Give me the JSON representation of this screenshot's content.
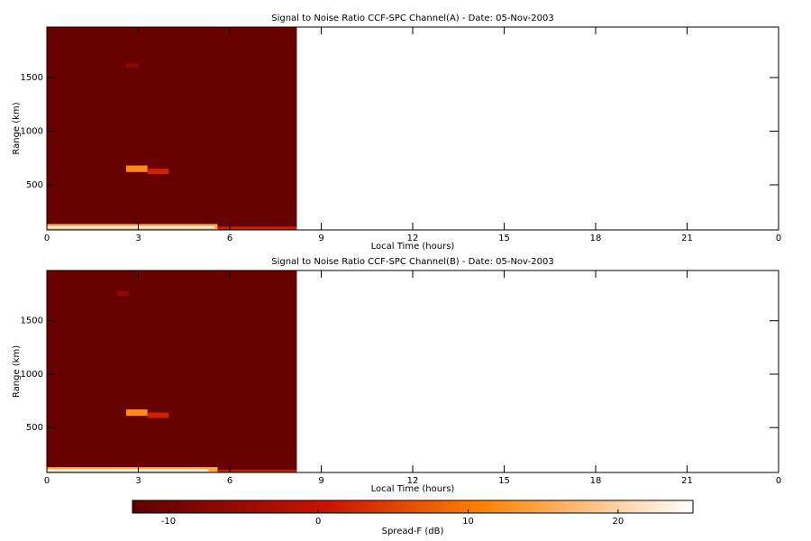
{
  "chart_data": [
    {
      "type": "heatmap",
      "title": "Signal to Noise Ratio CCF-SPC Channel(A) - Date: 05-Nov-2003",
      "xlabel": "Local Time (hours)",
      "ylabel": "Range (km)",
      "xlim": [
        0,
        24
      ],
      "xticks": [
        0,
        3,
        6,
        9,
        12,
        15,
        18,
        21,
        {
          "value": 24,
          "label": "0"
        }
      ],
      "ylim": [
        80,
        1970
      ],
      "yticks": [
        500,
        1000,
        1500
      ],
      "cells": [
        {
          "x": [
            0,
            8.2
          ],
          "y": [
            80,
            1970
          ],
          "value": -11
        },
        {
          "x": [
            2.6,
            3.0
          ],
          "y": [
            1590,
            1630
          ],
          "value": -7
        },
        {
          "x": [
            0,
            5.6
          ],
          "y": [
            80,
            135
          ],
          "value": 15
        },
        {
          "x": [
            5.6,
            8.2
          ],
          "y": [
            80,
            110
          ],
          "value": 2
        },
        {
          "x": [
            0,
            5.5
          ],
          "y": [
            95,
            115
          ],
          "value": 24
        },
        {
          "x": [
            2.6,
            3.3
          ],
          "y": [
            620,
            680
          ],
          "value": 12
        },
        {
          "x": [
            3.3,
            4.0
          ],
          "y": [
            600,
            650
          ],
          "value": 2
        }
      ]
    },
    {
      "type": "heatmap",
      "title": "Signal to Noise Ratio CCF-SPC Channel(B) - Date: 05-Nov-2003",
      "xlabel": "Local Time (hours)",
      "ylabel": "Range (km)",
      "xlim": [
        0,
        24
      ],
      "xticks": [
        0,
        3,
        6,
        9,
        12,
        15,
        18,
        21,
        {
          "value": 24,
          "label": "0"
        }
      ],
      "ylim": [
        80,
        1970
      ],
      "yticks": [
        500,
        1000,
        1500
      ],
      "cells": [
        {
          "x": [
            0,
            8.2
          ],
          "y": [
            80,
            1970
          ],
          "value": -11
        },
        {
          "x": [
            2.3,
            2.7
          ],
          "y": [
            1730,
            1780
          ],
          "value": -7
        },
        {
          "x": [
            0,
            5.6
          ],
          "y": [
            80,
            130
          ],
          "value": 15
        },
        {
          "x": [
            5.6,
            8.2
          ],
          "y": [
            80,
            105
          ],
          "value": 2
        },
        {
          "x": [
            0,
            5.3
          ],
          "y": [
            90,
            110
          ],
          "value": 24
        },
        {
          "x": [
            2.6,
            3.3
          ],
          "y": [
            610,
            670
          ],
          "value": 12
        },
        {
          "x": [
            3.3,
            4.0
          ],
          "y": [
            590,
            640
          ],
          "value": 2
        }
      ]
    }
  ],
  "colorbar": {
    "label": "Spread-F (dB)",
    "zlim": [
      -12.4,
      25
    ],
    "zticks": [
      -10,
      0,
      10,
      20
    ]
  }
}
